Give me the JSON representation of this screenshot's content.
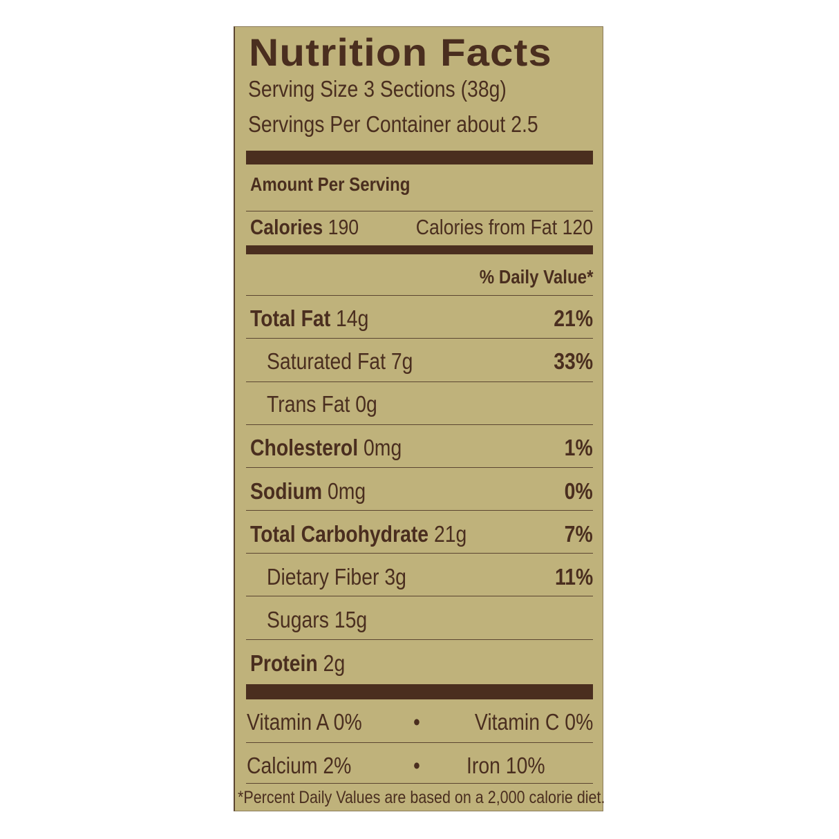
{
  "title": "Nutrition Facts",
  "serving_size": "Serving Size 3 Sections (38g)",
  "servings_per_container": "Servings Per Container about 2.5",
  "amount_per_serving": "Amount Per Serving",
  "calories": {
    "label": "Calories",
    "value": "190",
    "from_fat": "Calories from Fat 120"
  },
  "daily_value_header": "% Daily Value*",
  "nutrients": [
    {
      "label": "Total Fat",
      "amount": "14g",
      "dv": "21%"
    },
    {
      "label": "Saturated Fat",
      "amount": "7g",
      "dv": "33%"
    },
    {
      "label": "Trans Fat",
      "amount": "0g",
      "dv": ""
    },
    {
      "label": "Cholesterol",
      "amount": "0mg",
      "dv": "1%"
    },
    {
      "label": "Sodium",
      "amount": "0mg",
      "dv": "0%"
    },
    {
      "label": "Total Carbohydrate",
      "amount": "21g",
      "dv": "7%"
    },
    {
      "label": "Dietary Fiber",
      "amount": "3g",
      "dv": "11%"
    },
    {
      "label": "Sugars",
      "amount": "15g",
      "dv": ""
    },
    {
      "label": "Protein",
      "amount": "2g",
      "dv": ""
    }
  ],
  "vitamins": [
    {
      "left": "Vitamin A 0%",
      "sep": "•",
      "right": "Vitamin C 0%"
    },
    {
      "left": "Calcium 2%",
      "sep": "•",
      "right": "Iron 10%"
    }
  ],
  "footnote": "*Percent Daily Values are based on a 2,000 calorie diet.",
  "colors": {
    "background": "#bfb27b",
    "text": "#4a2e1f"
  }
}
